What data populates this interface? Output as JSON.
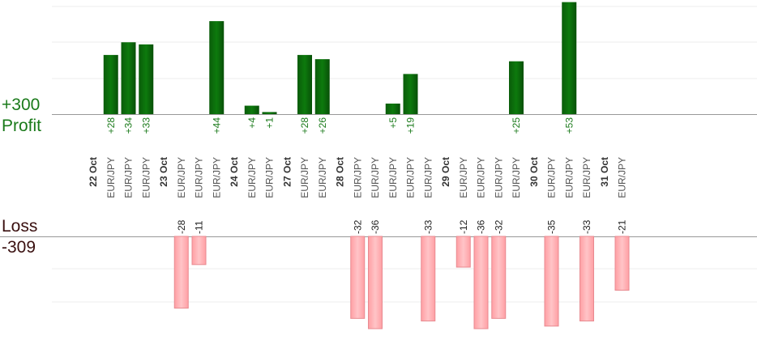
{
  "chart_data": {
    "type": "bar",
    "summary": {
      "profit_total": "+300",
      "profit_label": "Profit",
      "loss_label": "Loss",
      "loss_total": "-309"
    },
    "colors": {
      "profit_bar": "#0a6b0a",
      "profit_text": "#1a7a1a",
      "loss_bar": "#ffb3b6",
      "loss_text": "#222222",
      "profit_total_text": "#1a7a1a",
      "loss_total_text": "#3a1010",
      "axis": "#999999",
      "grid": "#eeeeee"
    },
    "profit_scale_max": 60,
    "loss_scale_max": 36,
    "groups": [
      {
        "day": "22 Oct",
        "trades": [
          {
            "pair": "EUR/JPY",
            "value": 28
          },
          {
            "pair": "EUR/JPY",
            "value": 34
          },
          {
            "pair": "EUR/JPY",
            "value": 33
          }
        ]
      },
      {
        "day": "23 Oct",
        "trades": [
          {
            "pair": "EUR/JPY",
            "value": -28
          },
          {
            "pair": "EUR/JPY",
            "value": -11
          },
          {
            "pair": "EUR/JPY",
            "value": 44
          }
        ]
      },
      {
        "day": "24 Oct",
        "trades": [
          {
            "pair": "EUR/JPY",
            "value": 4
          },
          {
            "pair": "EUR/JPY",
            "value": 1
          }
        ]
      },
      {
        "day": "27 Oct",
        "trades": [
          {
            "pair": "EUR/JPY",
            "value": 28
          },
          {
            "pair": "EUR/JPY",
            "value": 26
          }
        ]
      },
      {
        "day": "28 Oct",
        "trades": [
          {
            "pair": "EUR/JPY",
            "value": -32
          },
          {
            "pair": "EUR/JPY",
            "value": -36
          },
          {
            "pair": "EUR/JPY",
            "value": 5
          },
          {
            "pair": "EUR/JPY",
            "value": 19
          },
          {
            "pair": "EUR/JPY",
            "value": -33
          }
        ]
      },
      {
        "day": "29 Oct",
        "trades": [
          {
            "pair": "EUR/JPY",
            "value": -12
          },
          {
            "pair": "EUR/JPY",
            "value": -36
          },
          {
            "pair": "EUR/JPY",
            "value": -32
          },
          {
            "pair": "EUR/JPY",
            "value": 25
          }
        ]
      },
      {
        "day": "30 Oct",
        "trades": [
          {
            "pair": "EUR/JPY",
            "value": -35
          },
          {
            "pair": "EUR/JPY",
            "value": 53
          },
          {
            "pair": "EUR/JPY",
            "value": -33
          }
        ]
      },
      {
        "day": "31 Oct",
        "trades": [
          {
            "pair": "EUR/JPY",
            "value": -21
          }
        ]
      }
    ]
  }
}
